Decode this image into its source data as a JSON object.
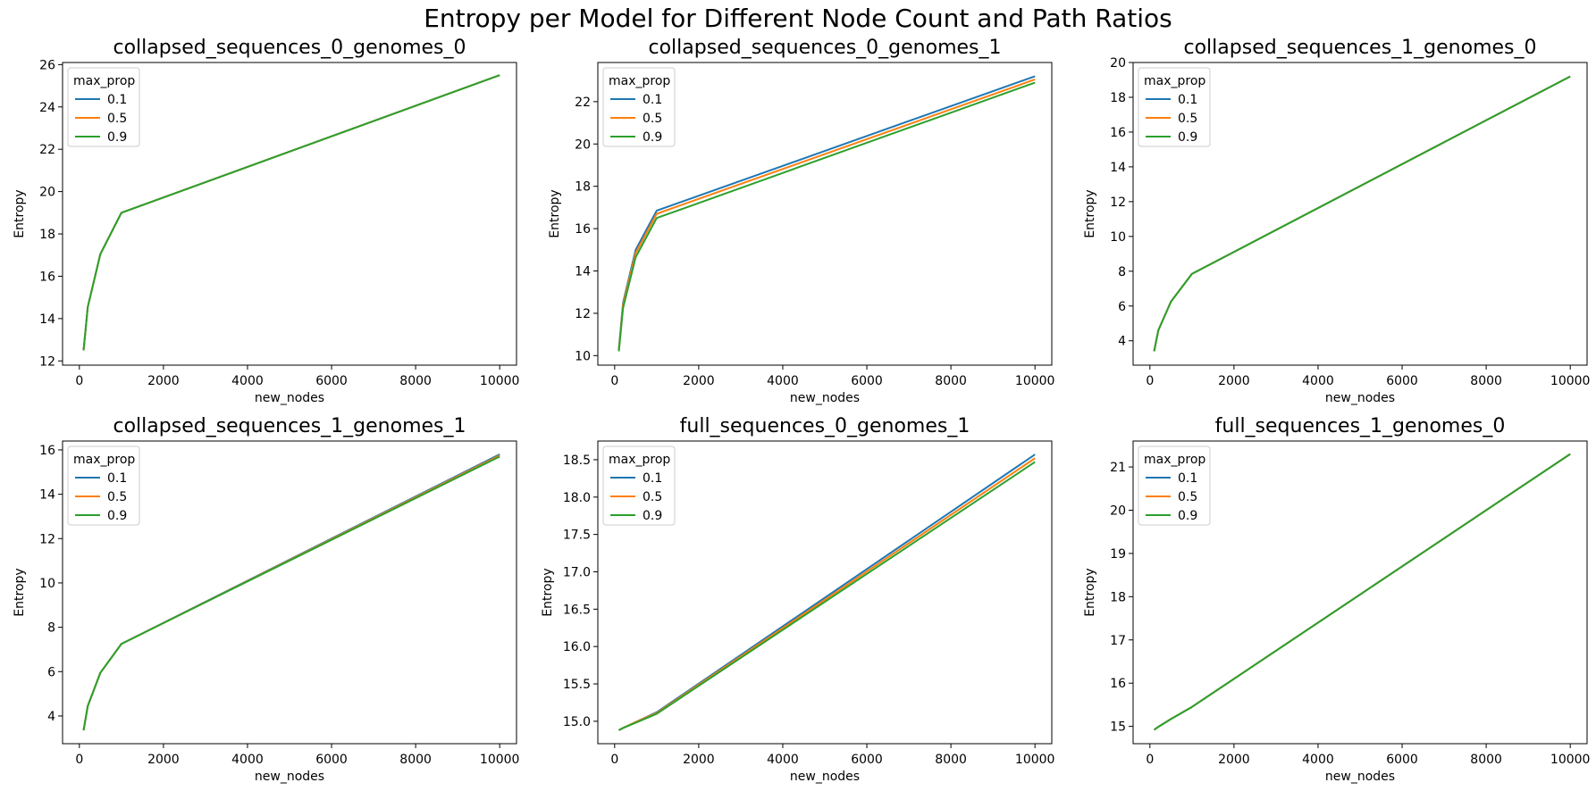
{
  "figure": {
    "title": "Entropy per Model for Different Node Count and Path Ratios"
  },
  "colors": {
    "0.1": "#1f77b4",
    "0.5": "#ff7f0e",
    "0.9": "#2ca02c"
  },
  "chart_data": [
    {
      "type": "line",
      "title": "collapsed_sequences_0_genomes_0",
      "xlabel": "new_nodes",
      "ylabel": "Entropy",
      "xlim": [
        -400,
        10400
      ],
      "ylim": [
        11.8,
        26.1
      ],
      "xticks": [
        0,
        2000,
        4000,
        6000,
        8000,
        10000
      ],
      "yticks": [
        12,
        14,
        16,
        18,
        20,
        22,
        24,
        26
      ],
      "legend": {
        "title": "max_prop",
        "placement": "upper-left"
      },
      "x": [
        100,
        200,
        500,
        1000,
        10000
      ],
      "series": [
        {
          "name": "0.1",
          "values": [
            12.5,
            14.55,
            17.05,
            19.0,
            25.5
          ]
        },
        {
          "name": "0.5",
          "values": [
            12.5,
            14.55,
            17.05,
            19.0,
            25.5
          ]
        },
        {
          "name": "0.9",
          "values": [
            12.5,
            14.55,
            17.05,
            19.0,
            25.5
          ]
        }
      ]
    },
    {
      "type": "line",
      "title": "collapsed_sequences_0_genomes_1",
      "xlabel": "new_nodes",
      "ylabel": "Entropy",
      "xlim": [
        -400,
        10400
      ],
      "ylim": [
        9.55,
        23.85
      ],
      "xticks": [
        0,
        2000,
        4000,
        6000,
        8000,
        10000
      ],
      "yticks": [
        10,
        12,
        14,
        16,
        18,
        20,
        22
      ],
      "legend": {
        "title": "max_prop",
        "placement": "upper-left"
      },
      "x": [
        100,
        200,
        500,
        1000,
        10000
      ],
      "series": [
        {
          "name": "0.1",
          "values": [
            10.3,
            12.5,
            15.0,
            16.85,
            23.2
          ]
        },
        {
          "name": "0.5",
          "values": [
            10.25,
            12.4,
            14.85,
            16.7,
            23.05
          ]
        },
        {
          "name": "0.9",
          "values": [
            10.2,
            12.25,
            14.65,
            16.5,
            22.9
          ]
        }
      ]
    },
    {
      "type": "line",
      "title": "collapsed_sequences_1_genomes_0",
      "xlabel": "new_nodes",
      "ylabel": "Entropy",
      "xlim": [
        -400,
        10400
      ],
      "ylim": [
        2.6,
        20.0
      ],
      "xticks": [
        0,
        2000,
        4000,
        6000,
        8000,
        10000
      ],
      "yticks": [
        4,
        6,
        8,
        10,
        12,
        14,
        16,
        18,
        20
      ],
      "legend": {
        "title": "max_prop",
        "placement": "upper-left"
      },
      "x": [
        100,
        200,
        500,
        1000,
        10000
      ],
      "series": [
        {
          "name": "0.1",
          "values": [
            3.4,
            4.6,
            6.25,
            7.85,
            19.2
          ]
        },
        {
          "name": "0.5",
          "values": [
            3.4,
            4.6,
            6.25,
            7.85,
            19.2
          ]
        },
        {
          "name": "0.9",
          "values": [
            3.4,
            4.6,
            6.25,
            7.85,
            19.2
          ]
        }
      ]
    },
    {
      "type": "line",
      "title": "collapsed_sequences_1_genomes_1",
      "xlabel": "new_nodes",
      "ylabel": "Entropy",
      "xlim": [
        -400,
        10400
      ],
      "ylim": [
        2.75,
        16.4
      ],
      "xticks": [
        0,
        2000,
        4000,
        6000,
        8000,
        10000
      ],
      "yticks": [
        4,
        6,
        8,
        10,
        12,
        14,
        16
      ],
      "legend": {
        "title": "max_prop",
        "placement": "upper-left"
      },
      "x": [
        100,
        200,
        500,
        1000,
        10000
      ],
      "series": [
        {
          "name": "0.1",
          "values": [
            3.35,
            4.45,
            5.95,
            7.25,
            15.8
          ]
        },
        {
          "name": "0.5",
          "values": [
            3.35,
            4.45,
            5.95,
            7.25,
            15.75
          ]
        },
        {
          "name": "0.9",
          "values": [
            3.35,
            4.45,
            5.95,
            7.25,
            15.7
          ]
        }
      ]
    },
    {
      "type": "line",
      "title": "full_sequences_0_genomes_1",
      "xlabel": "new_nodes",
      "ylabel": "Entropy",
      "xlim": [
        -400,
        10400
      ],
      "ylim": [
        14.7,
        18.75
      ],
      "xticks": [
        0,
        2000,
        4000,
        6000,
        8000,
        10000
      ],
      "yticks": [
        15.0,
        15.5,
        16.0,
        16.5,
        17.0,
        17.5,
        18.0,
        18.5
      ],
      "ytick_labels": [
        "15.0",
        "15.5",
        "16.0",
        "16.5",
        "17.0",
        "17.5",
        "18.0",
        "18.5"
      ],
      "legend": {
        "title": "max_prop",
        "placement": "upper-left"
      },
      "x": [
        100,
        200,
        500,
        1000,
        10000
      ],
      "series": [
        {
          "name": "0.1",
          "values": [
            14.88,
            14.91,
            14.99,
            15.12,
            18.57
          ]
        },
        {
          "name": "0.5",
          "values": [
            14.88,
            14.91,
            14.99,
            15.11,
            18.52
          ]
        },
        {
          "name": "0.9",
          "values": [
            14.88,
            14.91,
            14.98,
            15.1,
            18.47
          ]
        }
      ]
    },
    {
      "type": "line",
      "title": "full_sequences_1_genomes_0",
      "xlabel": "new_nodes",
      "ylabel": "Entropy",
      "xlim": [
        -400,
        10400
      ],
      "ylim": [
        14.6,
        21.6
      ],
      "xticks": [
        0,
        2000,
        4000,
        6000,
        8000,
        10000
      ],
      "yticks": [
        15,
        16,
        17,
        18,
        19,
        20,
        21
      ],
      "legend": {
        "title": "max_prop",
        "placement": "upper-left"
      },
      "x": [
        100,
        200,
        500,
        1000,
        10000
      ],
      "series": [
        {
          "name": "0.1",
          "values": [
            14.92,
            14.99,
            15.17,
            15.45,
            21.3
          ]
        },
        {
          "name": "0.5",
          "values": [
            14.92,
            14.99,
            15.17,
            15.45,
            21.3
          ]
        },
        {
          "name": "0.9",
          "values": [
            14.92,
            14.99,
            15.17,
            15.45,
            21.3
          ]
        }
      ]
    }
  ]
}
